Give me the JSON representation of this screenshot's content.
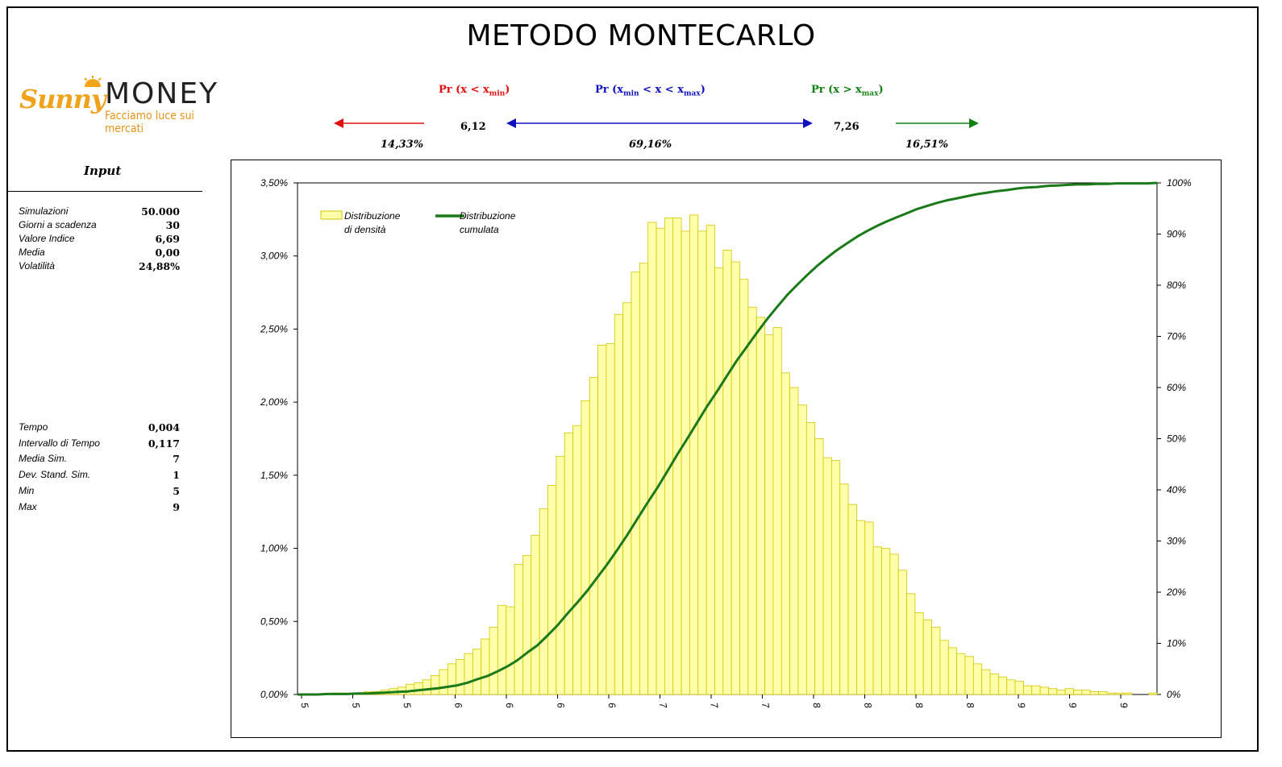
{
  "title": "METODO MONTECARLO",
  "logo": {
    "brand_1": "Sunny",
    "brand_2": "MONEY",
    "tagline": "Facciamo luce sui mercati"
  },
  "probabilities": {
    "left": {
      "label_pre": "Pr (x < x",
      "label_sub": "min",
      "label_post": ")",
      "value": "14,33%",
      "color": "#e01010"
    },
    "middle": {
      "label_pre": "Pr (x",
      "label_sub1": "min",
      "label_mid": " < x < x",
      "label_sub2": "max",
      "label_post": ")",
      "value": "69,16%",
      "color": "#1010c0"
    },
    "right": {
      "label_pre": "Pr (x > x",
      "label_sub": "max",
      "label_post": ")",
      "value": "16,51%",
      "color": "#128012"
    },
    "xmin": "6,12",
    "xmax": "7,26"
  },
  "input": {
    "title": "Input",
    "params": [
      {
        "name": "Simulazioni",
        "value": "50.000"
      },
      {
        "name": "Giorni a scadenza",
        "value": "30"
      },
      {
        "name": "Valore Indice",
        "value": "6,69"
      },
      {
        "name": "Media",
        "value": "0,00"
      },
      {
        "name": "Volatilità",
        "value": "24,88%"
      }
    ],
    "results": [
      {
        "name": "Tempo",
        "value": "0,004"
      },
      {
        "name": "Intervallo di Tempo",
        "value": "0,117"
      },
      {
        "name": "Media Sim.",
        "value": "7"
      },
      {
        "name": "Dev. Stand. Sim.",
        "value": "1"
      },
      {
        "name": "Min",
        "value": "5"
      },
      {
        "name": "Max",
        "value": "9"
      }
    ]
  },
  "chart_data": {
    "type": "bar",
    "title": "",
    "legend_position": "top-left",
    "grid": false,
    "x_tick_labels": [
      "5",
      "5",
      "5",
      "6",
      "6",
      "6",
      "6",
      "7",
      "7",
      "7",
      "8",
      "8",
      "8",
      "8",
      "9",
      "9",
      "9"
    ],
    "y_left": {
      "min": 0,
      "max": 3.5,
      "ticks": [
        "0,00%",
        "0,50%",
        "1,00%",
        "1,50%",
        "2,00%",
        "2,50%",
        "3,00%",
        "3,50%"
      ]
    },
    "y_right": {
      "min": 0,
      "max": 100,
      "ticks": [
        "0%",
        "10%",
        "20%",
        "30%",
        "40%",
        "50%",
        "60%",
        "70%",
        "80%",
        "90%",
        "100%"
      ]
    },
    "series": [
      {
        "name": "Distribuzione di densità",
        "legend_line1": "Distribuzione",
        "legend_line2": "di densità",
        "type": "bar",
        "axis": "left",
        "color": "#ffffaa",
        "stroke": "#d4c400",
        "values": [
          0.0,
          0.0,
          0.0,
          0.0,
          0.01,
          0.01,
          0.01,
          0.01,
          0.02,
          0.02,
          0.03,
          0.04,
          0.05,
          0.07,
          0.08,
          0.1,
          0.13,
          0.17,
          0.21,
          0.24,
          0.28,
          0.31,
          0.38,
          0.46,
          0.61,
          0.6,
          0.89,
          0.95,
          1.09,
          1.27,
          1.43,
          1.63,
          1.79,
          1.84,
          2.01,
          2.17,
          2.39,
          2.4,
          2.6,
          2.68,
          2.89,
          2.95,
          3.23,
          3.19,
          3.26,
          3.26,
          3.17,
          3.28,
          3.17,
          3.21,
          2.92,
          3.04,
          2.96,
          2.84,
          2.65,
          2.58,
          2.46,
          2.51,
          2.2,
          2.1,
          1.98,
          1.86,
          1.75,
          1.62,
          1.6,
          1.44,
          1.3,
          1.19,
          1.18,
          1.01,
          1.0,
          0.96,
          0.85,
          0.69,
          0.56,
          0.51,
          0.46,
          0.37,
          0.32,
          0.28,
          0.26,
          0.21,
          0.17,
          0.14,
          0.12,
          0.1,
          0.09,
          0.06,
          0.06,
          0.05,
          0.04,
          0.03,
          0.04,
          0.03,
          0.03,
          0.02,
          0.02,
          0.01,
          0.01,
          0.01,
          0.0,
          0.0,
          0.01
        ]
      },
      {
        "name": "Distribuzione cumulata",
        "legend_line1": "Distribuzione",
        "legend_line2": "cumulata",
        "type": "line",
        "axis": "right",
        "color": "#1a7a1a",
        "values": [
          0.0,
          0.0,
          0.0,
          0.1,
          0.1,
          0.1,
          0.2,
          0.2,
          0.3,
          0.4,
          0.5,
          0.6,
          0.8,
          1.0,
          1.2,
          1.5,
          1.8,
          2.3,
          3.0,
          3.6,
          4.5,
          5.5,
          6.7,
          8.2,
          9.6,
          11.5,
          13.5,
          15.8,
          18.0,
          20.3,
          22.9,
          25.5,
          28.3,
          31.2,
          34.3,
          37.4,
          40.4,
          43.6,
          46.9,
          50.0,
          53.2,
          56.4,
          59.3,
          62.4,
          65.4,
          68.1,
          70.8,
          73.4,
          75.8,
          78.1,
          80.1,
          82.0,
          83.8,
          85.4,
          86.9,
          88.2,
          89.5,
          90.6,
          91.6,
          92.5,
          93.3,
          94.1,
          94.9,
          95.5,
          96.1,
          96.6,
          97.0,
          97.4,
          97.8,
          98.1,
          98.4,
          98.6,
          98.9,
          99.1,
          99.2,
          99.4,
          99.5,
          99.6,
          99.7,
          99.7,
          99.8,
          99.8,
          99.9,
          99.9,
          99.9,
          99.9,
          100.0
        ]
      }
    ]
  }
}
